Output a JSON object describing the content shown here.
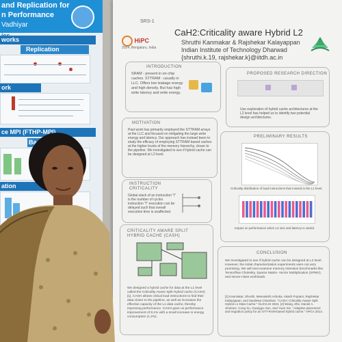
{
  "left_poster": {
    "title_line1": "and Replication for",
    "title_line2": "n Performance",
    "title_line3": "Vadhiyar",
    "title_line4": "ics",
    "band_works": "works",
    "band_replication": "Replication",
    "band_work": "ork",
    "band_mpi": "ce MPI (FTHP-MPI)",
    "band_ba": "Ba",
    "band_ation": "ation",
    "colors": {
      "header": "#1f8fd6",
      "band": "#1d74b8"
    }
  },
  "poster": {
    "id": "SRS-1",
    "title": "CaH2:Criticality aware Hybrid L2",
    "authors": "Shruthi Kanmakar & Rajshekar Kalayappan",
    "institute": "Indian Institute of Technology Dharwad",
    "emails": "{shruthi.k.19, rajshekar.k}@iitdh.ac.in",
    "conference_logo": "HiPC",
    "conference_sub": "2024, Bengaluru, India",
    "sections": {
      "introduction": "INTRODUCTION",
      "intro_text": "SRAM - present in on-chip caches. STTRAM - usually in LLC. Offers low leakage energy and high density. But has high write latency and write energy.",
      "motivation": "MOTIVATION",
      "motivation_text": "Past work has primarily employed the STTRAM arrays at the LLC and focused on mitigating the large write energy and latency. Our approach has instead been to study the efficacy of employing STTRAM based caches at the higher levels of the memory hierarchy, closer to the pipeline. We investigated to see if hybrid cache can be designed at L2 level.",
      "criticality": "INSTRUCTION CRITICALITY",
      "criticality_text": "Global slack of an instruction \"I\" is the number of cycles instruction \"I\" execution can be delayed such that overall execution time is unaffected.",
      "cash": "CRITICALITY AWARE SPLIT HYBRID CACHE (CASH)",
      "cash_text": "We designed a hybrid cache for data at the L1 level called the Criticality Aware Split Hybrid cache (CASH) [1]. CASH allows critical load instructions to find their data closer to the pipeline, as well as increases the effective capacity of the L1 data cache, thereby improving performance. CASH gave us performance improvement of 8.1% with a small increase in energy consumption (1.2%).",
      "proposed": "PROPOSED RESEARCH DIRECTION",
      "proposed_text": "Use exploration of hybrid cache architectures at the L2 level has helped us to identify two potential design architectures.",
      "preliminary": "PRELIMINARY RESULTS",
      "prelim_caption1": "Criticality distribution of load instructions that missed in the L1 level.",
      "prelim_caption2": "Impact on performance when L2 size and latency is varied.",
      "conclusion": "CONCLUSION",
      "conclusion_text": "We investigated to see if hybrid cache can be designed at L2 level. However, the initial characterization experiments were not very promising. We will next examine memory intensive benchmarks like Tensorflow Cholesky, Sparse Matrix- Vector Multiplication (SPMV), and server-class workloads.",
      "references_text": "[1] Kanmakar, Shruthi, Meenakshi Ashoka, Akash Poptani, Rajshekar Kalayappan, and Sandeep Chandran. \"CASH: Criticality-Aware Split Hybrid L1 Data Cache.\" GLSVLSI 2024. [2] Wang, Zhe, Daniel A. Jiménez, Cong Xu, Guangyu Sun, and Yuan Xie. \"Adaptive placement and migration policy for an STT-RAM-based hybrid cache.\" HPCA 2014."
    },
    "colors": {
      "background": "#f3f3f1",
      "box_border": "#b7b7b3",
      "bar_pink": "#e85b8a",
      "bar_blue": "#4a6fd1"
    }
  },
  "person": {
    "description_colors": {
      "hair": "#1a1412",
      "skin": "#8a5a3c",
      "kurta": "#c2a874",
      "shawl": "#8a6d3b"
    }
  }
}
